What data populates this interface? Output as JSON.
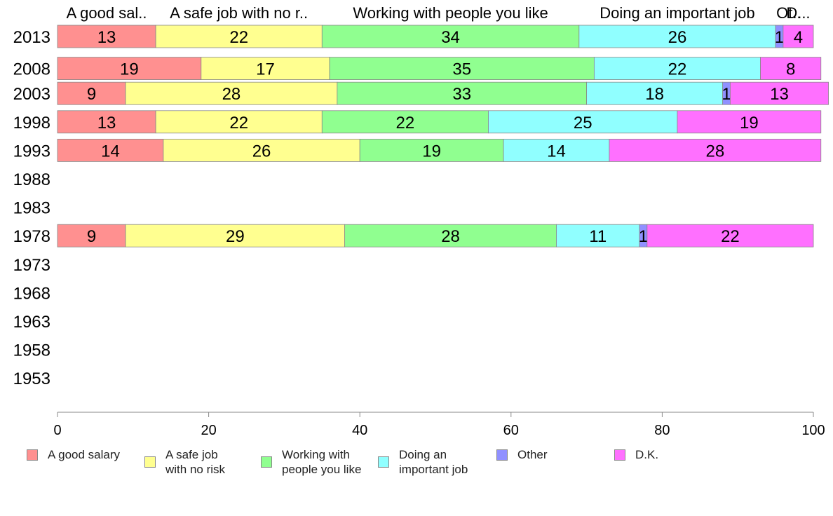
{
  "chart_data": {
    "type": "bar",
    "orientation": "horizontal",
    "stacked": true,
    "categories": [
      "2013",
      "2008",
      "2003",
      "1998",
      "1993",
      "1988",
      "1983",
      "1978",
      "1973",
      "1968",
      "1963",
      "1958",
      "1953"
    ],
    "top_labels": [
      "A good sal..",
      "A safe job with no r..",
      "Working with people you like",
      "Doing an important job",
      "Ot..",
      "D..."
    ],
    "series": [
      {
        "name": "A good salary",
        "legend": "A good salary",
        "color": "#ff9090",
        "values": [
          13,
          19,
          9,
          13,
          14,
          null,
          null,
          9,
          null,
          null,
          null,
          null,
          null
        ]
      },
      {
        "name": "A safe job with no risk",
        "legend": "A safe job\nwith no risk",
        "color": "#ffff90",
        "values": [
          22,
          17,
          28,
          22,
          26,
          null,
          null,
          29,
          null,
          null,
          null,
          null,
          null
        ]
      },
      {
        "name": "Working with people you like",
        "legend": "Working with\npeople you like",
        "color": "#90ff90",
        "values": [
          34,
          35,
          33,
          22,
          19,
          null,
          null,
          28,
          null,
          null,
          null,
          null,
          null
        ]
      },
      {
        "name": "Doing an important job",
        "legend": "Doing an\nimportant job",
        "color": "#90ffff",
        "values": [
          26,
          22,
          18,
          25,
          14,
          null,
          null,
          11,
          null,
          null,
          null,
          null,
          null
        ]
      },
      {
        "name": "Other",
        "legend": "Other",
        "color": "#9090ff",
        "values": [
          1,
          0,
          1,
          0,
          0,
          null,
          null,
          1,
          null,
          null,
          null,
          null,
          null
        ]
      },
      {
        "name": "D.K.",
        "legend": "D.K.",
        "color": "#ff70ff",
        "values": [
          4,
          8,
          13,
          19,
          28,
          null,
          null,
          22,
          null,
          null,
          null,
          null,
          null
        ]
      }
    ],
    "xlim": [
      0,
      100
    ],
    "xticks": [
      0,
      20,
      40,
      60,
      80,
      100
    ],
    "legend_position": "bottom",
    "grid": false
  }
}
